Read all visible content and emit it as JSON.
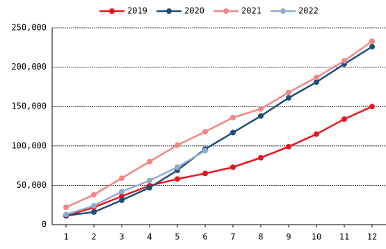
{
  "chart_data": {
    "type": "line",
    "x": [
      1,
      2,
      3,
      4,
      5,
      6,
      7,
      8,
      9,
      10,
      11,
      12
    ],
    "xlim": [
      0.5,
      12.5
    ],
    "xticks": [
      1,
      2,
      3,
      4,
      5,
      6,
      7,
      8,
      9,
      10,
      11,
      12
    ],
    "ylim": [
      0,
      250000
    ],
    "yticks": [
      0,
      {
        "value": 50000,
        "label": "50,000"
      },
      {
        "value": 100000,
        "label": "100,000"
      },
      {
        "value": 150000,
        "label": "150,000"
      },
      {
        "value": 200000,
        "label": "200,000"
      },
      {
        "value": 250000,
        "label": "250,000"
      }
    ],
    "grid": true,
    "legend": "top",
    "series": [
      {
        "name": "2019",
        "color": "#e8141e",
        "values": [
          11000,
          22000,
          36000,
          49500,
          58000,
          65000,
          73000,
          85000,
          99000,
          115000,
          134000,
          150000
        ]
      },
      {
        "name": "2020",
        "color": "#1f4e79",
        "values": [
          11500,
          16000,
          31000,
          47000,
          69000,
          96000,
          117000,
          138000,
          161000,
          181000,
          204000,
          226000
        ]
      },
      {
        "name": "2021",
        "color": "#f28585",
        "values": [
          22000,
          38000,
          59000,
          80000,
          101000,
          118000,
          136000,
          147000,
          168000,
          187000,
          208000,
          233000
        ]
      },
      {
        "name": "2022",
        "color": "#8eaccd",
        "values": [
          13000,
          24000,
          42000,
          56000,
          73000,
          94000,
          null,
          null,
          null,
          null,
          null,
          null
        ]
      }
    ]
  }
}
